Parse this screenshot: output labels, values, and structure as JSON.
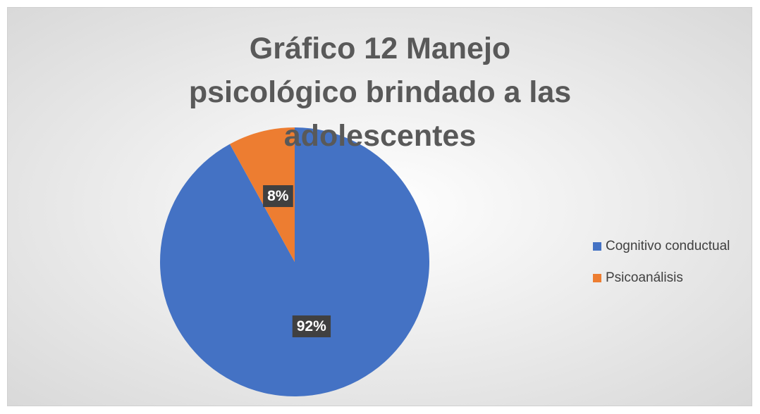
{
  "chart_data": {
    "type": "pie",
    "title": "Gráfico 12 Manejo psicológico brindado a las adolescentes",
    "categories": [
      "Cognitivo conductual",
      "Psicoanálisis"
    ],
    "values": [
      92,
      8
    ],
    "value_labels": [
      "92%",
      "8%"
    ],
    "colors": [
      "#4472c4",
      "#ed7d31"
    ],
    "legend": "right"
  }
}
